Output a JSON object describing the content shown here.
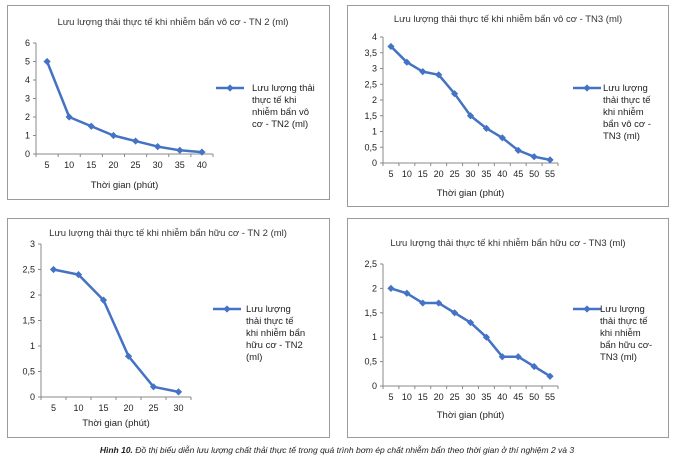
{
  "chart_data": [
    {
      "type": "line",
      "title": "Lưu lượng thải thực tế khi nhiễm bẩn vô cơ - TN 2 (ml)",
      "xlabel": "Thời gian (phút)",
      "ylabel": "",
      "x": [
        5,
        10,
        15,
        20,
        25,
        30,
        35,
        40
      ],
      "series": [
        {
          "name_lines": [
            "Lưu lượng thải",
            "thực tế khi",
            "nhiễm bẩn vô",
            "cơ  - TN2 (ml)"
          ],
          "values": [
            5,
            2,
            1.5,
            1.0,
            0.7,
            0.4,
            0.2,
            0.1
          ]
        }
      ],
      "ylim": [
        0,
        6
      ],
      "yticks": [
        0,
        1,
        2,
        3,
        4,
        5,
        6
      ],
      "ytick_labels": [
        "0",
        "1",
        "2",
        "3",
        "4",
        "5",
        "6"
      ],
      "xtick_labels": [
        "5",
        "10",
        "15",
        "20",
        "25",
        "30",
        "35",
        "40"
      ],
      "legend": "right",
      "grid": false,
      "color": "#4472c4"
    },
    {
      "type": "line",
      "title": "Lưu lượng thải thực tế khi nhiễm bẩn vô cơ - TN3 (ml)",
      "xlabel": "Thời gian (phút)",
      "ylabel": "",
      "x": [
        5,
        10,
        15,
        20,
        25,
        30,
        35,
        40,
        45,
        50,
        55
      ],
      "series": [
        {
          "name_lines": [
            "Lưu lượng",
            "thải thực tế",
            "khi nhiễm",
            "bẩn vô cơ -",
            "TN3 (ml)"
          ],
          "values": [
            3.7,
            3.2,
            2.9,
            2.8,
            2.2,
            1.5,
            1.1,
            0.8,
            0.4,
            0.2,
            0.1
          ]
        }
      ],
      "ylim": [
        0,
        4
      ],
      "yticks": [
        0,
        0.5,
        1,
        1.5,
        2,
        2.5,
        3,
        3.5,
        4
      ],
      "ytick_labels": [
        "0",
        "0,5",
        "1",
        "1,5",
        "2",
        "2,5",
        "3",
        "3,5",
        "4"
      ],
      "xtick_labels": [
        "5",
        "10",
        "15",
        "20",
        "25",
        "30",
        "35",
        "40",
        "45",
        "50",
        "55"
      ],
      "legend": "right",
      "grid": false,
      "color": "#4472c4"
    },
    {
      "type": "line",
      "title": "Lưu lượng thải thực tế khi nhiễm bẩn hữu cơ - TN 2 (ml)",
      "xlabel": "Thời gian (phút)",
      "ylabel": "",
      "x": [
        5,
        10,
        15,
        20,
        25,
        30
      ],
      "series": [
        {
          "name_lines": [
            "Lưu lượng",
            "thải thực tế",
            "khi nhiễm bẩn",
            "hữu cơ    - TN2",
            "(ml)"
          ],
          "values": [
            2.5,
            2.4,
            1.9,
            0.8,
            0.2,
            0.1
          ]
        }
      ],
      "ylim": [
        0,
        3
      ],
      "yticks": [
        0,
        0.5,
        1,
        1.5,
        2,
        2.5,
        3
      ],
      "ytick_labels": [
        "0",
        "0,5",
        "1",
        "1,5",
        "2",
        "2,5",
        "3"
      ],
      "xtick_labels": [
        "5",
        "10",
        "15",
        "20",
        "25",
        "30"
      ],
      "legend": "right",
      "grid": false,
      "color": "#4472c4"
    },
    {
      "type": "line",
      "title": "Lưu lượng thải thực tế  khi nhiễm bẩn hữu cơ - TN3 (ml)",
      "xlabel": "Thời gian (phút)",
      "ylabel": "",
      "x": [
        5,
        10,
        15,
        20,
        25,
        30,
        35,
        40,
        45,
        50,
        55
      ],
      "series": [
        {
          "name_lines": [
            "Lưu lượng",
            "thải thực tế",
            "khi nhiễm",
            "bẩn hữu cơ-",
            "TN3 (ml)"
          ],
          "values": [
            2.0,
            1.9,
            1.7,
            1.7,
            1.5,
            1.3,
            1.0,
            0.6,
            0.6,
            0.4,
            0.2
          ]
        }
      ],
      "ylim": [
        0,
        2.5
      ],
      "yticks": [
        0,
        0.5,
        1,
        1.5,
        2,
        2.5
      ],
      "ytick_labels": [
        "0",
        "0,5",
        "1",
        "1,5",
        "2",
        "2,5"
      ],
      "xtick_labels": [
        "5",
        "10",
        "15",
        "20",
        "25",
        "30",
        "35",
        "40",
        "45",
        "50",
        "55"
      ],
      "legend": "right",
      "grid": false,
      "color": "#4472c4"
    }
  ],
  "caption": {
    "label": "Hình 10.",
    "text": " Đồ thị biểu diễn lưu lượng chất thải thực tế trong quá trình bơm ép chất nhiễm bẩn theo thời gian ở thí nghiệm 2 và 3"
  }
}
